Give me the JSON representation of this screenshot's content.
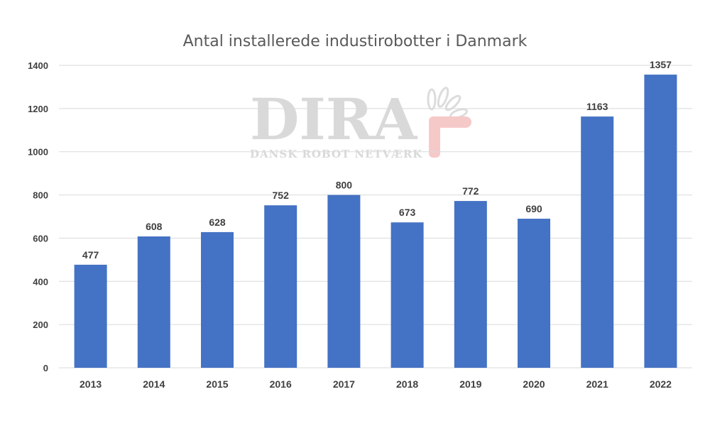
{
  "chart_data": {
    "type": "bar",
    "title": "Antal installerede industirobotter i Danmark",
    "categories": [
      "2013",
      "2014",
      "2015",
      "2016",
      "2017",
      "2018",
      "2019",
      "2020",
      "2021",
      "2022"
    ],
    "values": [
      477,
      608,
      628,
      752,
      800,
      673,
      772,
      690,
      1163,
      1357
    ],
    "ylim": [
      0,
      1400
    ],
    "yticks": [
      0,
      200,
      400,
      600,
      800,
      1000,
      1200,
      1400
    ],
    "grid": true,
    "bar_color": "#4472c4",
    "data_labels": true
  },
  "watermark": {
    "logo_text": "DIRA",
    "tagline": "DANSK ROBOT NETVÆRK",
    "icon": "hand-petals-icon"
  }
}
